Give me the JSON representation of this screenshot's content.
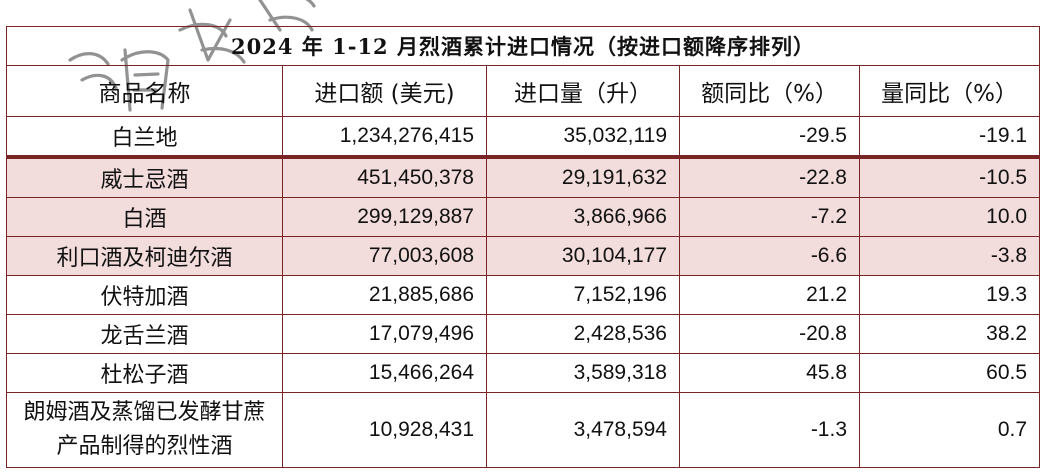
{
  "table": {
    "title": "2024 年 1-12 月烈酒累计进口情况（按进口额降序排列）",
    "headers": [
      "商品名称",
      "进口额 (美元)",
      "进口量（升）",
      "额同比（%）",
      "量同比（%）"
    ],
    "rows": [
      {
        "name": "白兰地",
        "amount": "1,234,276,415",
        "volume": "35,032,119",
        "amount_yoy": "-29.5",
        "volume_yoy": "-19.1"
      },
      {
        "name": "威士忌酒",
        "amount": "451,450,378",
        "volume": "29,191,632",
        "amount_yoy": "-22.8",
        "volume_yoy": "-10.5"
      },
      {
        "name": "白酒",
        "amount": "299,129,887",
        "volume": "3,866,966",
        "amount_yoy": "-7.2",
        "volume_yoy": "10.0"
      },
      {
        "name": "利口酒及柯迪尔酒",
        "amount": "77,003,608",
        "volume": "30,104,177",
        "amount_yoy": "-6.6",
        "volume_yoy": "-3.8"
      },
      {
        "name": "伏特加酒",
        "amount": "21,885,686",
        "volume": "7,152,196",
        "amount_yoy": "21.2",
        "volume_yoy": "19.3"
      },
      {
        "name": "龙舌兰酒",
        "amount": "17,079,496",
        "volume": "2,428,536",
        "amount_yoy": "-20.8",
        "volume_yoy": "38.2"
      },
      {
        "name": "杜松子酒",
        "amount": "15,466,264",
        "volume": "3,589,318",
        "amount_yoy": "45.8",
        "volume_yoy": "60.5"
      },
      {
        "name": "朗姆酒及蒸馏已发酵甘蔗产品制得的烈性酒",
        "amount": "10,928,431",
        "volume": "3,478,594",
        "amount_yoy": "-1.3",
        "volume_yoy": "0.7"
      }
    ],
    "highlight_color": "#f2dcdc",
    "border_color": "#7a2525"
  }
}
